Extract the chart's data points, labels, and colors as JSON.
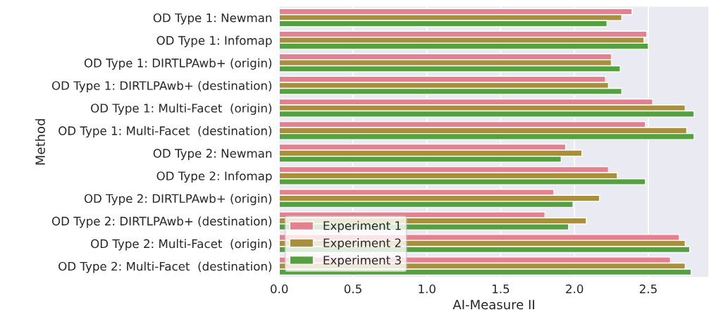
{
  "chart_data": {
    "type": "bar",
    "orientation": "horizontal",
    "xlabel": "AI-Measure II",
    "ylabel": "Method",
    "categories": [
      "OD Type 1: Newman",
      "OD Type 1: Infomap",
      "OD Type 1: DIRTLPAwb+ (origin)",
      "OD Type 1: DIRTLPAwb+ (destination)",
      "OD Type 1: Multi-Facet  (origin)",
      "OD Type 1: Multi-Facet  (destination)",
      "OD Type 2: Newman",
      "OD Type 2: Infomap",
      "OD Type 2: DIRTLPAwb+ (origin)",
      "OD Type 2: DIRTLPAwb+ (destination)",
      "OD Type 2: Multi-Facet  (origin)",
      "OD Type 2: Multi-Facet  (destination)"
    ],
    "series": [
      {
        "name": "Experiment 1",
        "color": "#e48090",
        "values": [
          2.39,
          2.49,
          2.25,
          2.21,
          2.53,
          2.48,
          1.94,
          2.23,
          1.86,
          1.8,
          2.71,
          2.65
        ]
      },
      {
        "name": "Experiment 2",
        "color": "#a88f40",
        "values": [
          2.32,
          2.47,
          2.25,
          2.23,
          2.75,
          2.76,
          2.05,
          2.29,
          2.17,
          2.08,
          2.75,
          2.75
        ]
      },
      {
        "name": "Experiment 3",
        "color": "#55a040",
        "values": [
          2.22,
          2.5,
          2.31,
          2.32,
          2.81,
          2.81,
          1.91,
          2.48,
          1.99,
          1.96,
          2.78,
          2.79
        ]
      }
    ],
    "xlim": [
      0,
      2.91
    ],
    "xticks": [
      {
        "value": 0,
        "label": "0.0"
      },
      0.5,
      {
        "value": 1,
        "label": "1.0"
      },
      1.5,
      {
        "value": 2,
        "label": "2.0"
      },
      2.5
    ],
    "grid": "x",
    "legend": "bottom left"
  }
}
